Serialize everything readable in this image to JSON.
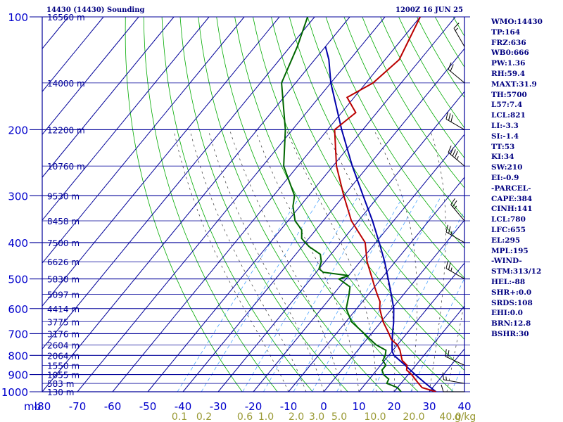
{
  "header": {
    "station": "14430 (14430) Sounding",
    "time": "1200Z 16 JUN 25"
  },
  "indices": [
    "WMO:14430",
    "TP:164",
    "FRZ:636",
    "WB0:666",
    "PW:1.36",
    "RH:59.4",
    "MAXT:31.9",
    "TH:5700",
    "L57:7.4",
    "LCL:821",
    "LI:-3.3",
    "SI:-1.4",
    "TT:53",
    "KI:34",
    "SW:210",
    "EI:-0.9",
    "-PARCEL-",
    "CAPE:384",
    "CINH:141",
    "LCL:780",
    "LFC:655",
    "EL:295",
    "MPL:195",
    "-WIND-",
    "STM:313/12",
    "HEL:-88",
    "SHR+:0.0",
    "SRDS:108",
    "EHI:0.0",
    "BRN:12.8",
    "BSHR:30"
  ],
  "colors": {
    "grid": "#000099",
    "axis_text": "#0000cc",
    "dry_adiabat": "#00aa00",
    "moist_adiabat": "#333333",
    "mixing_ratio": "#3399ff",
    "mixing_ratio_label": "#999933",
    "temperature": "#bb0000",
    "dewpoint": "#006600",
    "parcel": "#0000aa",
    "wind": "#000000"
  },
  "chart_data": {
    "type": "skew-t",
    "x_unit": "°C",
    "y_unit": "mb",
    "x_label": "mb",
    "x_ticks": [
      -80,
      -70,
      -60,
      -50,
      -40,
      -30,
      -20,
      -10,
      0,
      10,
      20,
      30,
      40
    ],
    "xlim": [
      -80,
      40
    ],
    "y_ticks": [
      100,
      200,
      300,
      400,
      500,
      600,
      700,
      800,
      900,
      1000
    ],
    "ylim": [
      1000,
      100
    ],
    "height_labels": [
      {
        "p": 100,
        "label": "16560 m"
      },
      {
        "p": 150,
        "label": "14000 m"
      },
      {
        "p": 200,
        "label": "12200 m"
      },
      {
        "p": 250,
        "label": "10760 m"
      },
      {
        "p": 300,
        "label": "9530 m"
      },
      {
        "p": 350,
        "label": "8458 m"
      },
      {
        "p": 400,
        "label": "7500 m"
      },
      {
        "p": 450,
        "label": "6626 m"
      },
      {
        "p": 500,
        "label": "5830 m"
      },
      {
        "p": 550,
        "label": "5097 m"
      },
      {
        "p": 600,
        "label": "4414 m"
      },
      {
        "p": 650,
        "label": "3775 m"
      },
      {
        "p": 700,
        "label": "3176 m"
      },
      {
        "p": 750,
        "label": "2604 m"
      },
      {
        "p": 800,
        "label": "2064 m"
      },
      {
        "p": 850,
        "label": "1550 m"
      },
      {
        "p": 900,
        "label": "1055 m"
      },
      {
        "p": 950,
        "label": "583 m"
      },
      {
        "p": 1000,
        "label": "130 m"
      }
    ],
    "mixing_ratio_labels": [
      "0.1",
      "0.2",
      "0.6",
      "1.0",
      "2.0",
      "3.0",
      "5.0",
      "10.0",
      "20.0",
      "40.0"
    ],
    "mixing_ratio_unit": "g/kg",
    "mixing_ratio_lines": [
      0.1,
      0.2,
      0.6,
      1.0,
      2.0,
      3.0,
      5.0,
      10.0,
      20.0,
      40.0
    ],
    "dry_adiabats_thetaK": [
      250,
      260,
      270,
      280,
      290,
      300,
      310,
      320,
      330,
      340,
      350,
      360,
      370,
      380,
      390,
      400,
      410,
      420,
      430,
      440,
      450,
      460,
      470,
      480,
      490,
      500,
      510,
      520,
      530
    ],
    "moist_adiabats_C": [
      -10,
      -5,
      0,
      5,
      10,
      15,
      20,
      25,
      30,
      35
    ],
    "temperature": [
      [
        1000,
        31.9
      ],
      [
        975,
        27
      ],
      [
        950,
        25
      ],
      [
        925,
        23
      ],
      [
        900,
        21
      ],
      [
        875,
        18.5
      ],
      [
        850,
        17.5
      ],
      [
        825,
        15
      ],
      [
        800,
        13.5
      ],
      [
        775,
        12
      ],
      [
        750,
        10
      ],
      [
        725,
        7
      ],
      [
        700,
        5
      ],
      [
        650,
        0.5
      ],
      [
        600,
        -3.5
      ],
      [
        575,
        -5
      ],
      [
        550,
        -7.5
      ],
      [
        525,
        -10
      ],
      [
        500,
        -12.5
      ],
      [
        450,
        -18
      ],
      [
        400,
        -23
      ],
      [
        350,
        -32
      ],
      [
        300,
        -40
      ],
      [
        250,
        -49
      ],
      [
        200,
        -58
      ],
      [
        180,
        -56
      ],
      [
        164,
        -62
      ],
      [
        150,
        -58
      ],
      [
        130,
        -56
      ],
      [
        100,
        -60
      ]
    ],
    "dewpoint": [
      [
        1000,
        22
      ],
      [
        975,
        20
      ],
      [
        950,
        16
      ],
      [
        925,
        15.5
      ],
      [
        900,
        13
      ],
      [
        875,
        11.5
      ],
      [
        850,
        11.5
      ],
      [
        825,
        9.5
      ],
      [
        800,
        9
      ],
      [
        775,
        8
      ],
      [
        750,
        4
      ],
      [
        725,
        1
      ],
      [
        700,
        -2
      ],
      [
        650,
        -8.5
      ],
      [
        600,
        -13
      ],
      [
        550,
        -15.5
      ],
      [
        525,
        -17
      ],
      [
        510,
        -20
      ],
      [
        500,
        -22
      ],
      [
        490,
        -20
      ],
      [
        480,
        -28
      ],
      [
        470,
        -30
      ],
      [
        450,
        -31
      ],
      [
        430,
        -33
      ],
      [
        410,
        -38
      ],
      [
        400,
        -40
      ],
      [
        390,
        -42
      ],
      [
        380,
        -43
      ],
      [
        370,
        -44
      ],
      [
        350,
        -48
      ],
      [
        320,
        -52
      ],
      [
        300,
        -54
      ],
      [
        250,
        -64
      ],
      [
        200,
        -72
      ],
      [
        150,
        -84
      ],
      [
        120,
        -88
      ],
      [
        100,
        -92
      ]
    ],
    "parcel": [
      [
        1000,
        31.9
      ],
      [
        950,
        27
      ],
      [
        900,
        22
      ],
      [
        850,
        17
      ],
      [
        800,
        11.5
      ],
      [
        780,
        10
      ],
      [
        750,
        8.5
      ],
      [
        700,
        6
      ],
      [
        655,
        3.8
      ],
      [
        600,
        0.5
      ],
      [
        550,
        -3.5
      ],
      [
        500,
        -8
      ],
      [
        450,
        -13
      ],
      [
        400,
        -19
      ],
      [
        350,
        -26
      ],
      [
        300,
        -34.5
      ],
      [
        250,
        -44.5
      ],
      [
        200,
        -56
      ],
      [
        150,
        -70
      ],
      [
        130,
        -76
      ],
      [
        120,
        -80
      ]
    ],
    "wind_barbs": [
      {
        "p": 1000,
        "dir": 270,
        "spd": 10
      },
      {
        "p": 950,
        "dir": 280,
        "spd": 15
      },
      {
        "p": 850,
        "dir": 295,
        "spd": 20
      },
      {
        "p": 500,
        "dir": 300,
        "spd": 25
      },
      {
        "p": 400,
        "dir": 300,
        "spd": 25
      },
      {
        "p": 350,
        "dir": 320,
        "spd": 25
      },
      {
        "p": 250,
        "dir": 310,
        "spd": 45
      },
      {
        "p": 200,
        "dir": 300,
        "spd": 30
      },
      {
        "p": 150,
        "dir": 310,
        "spd": 20
      },
      {
        "p": 120,
        "dir": 330,
        "spd": 15
      }
    ]
  }
}
